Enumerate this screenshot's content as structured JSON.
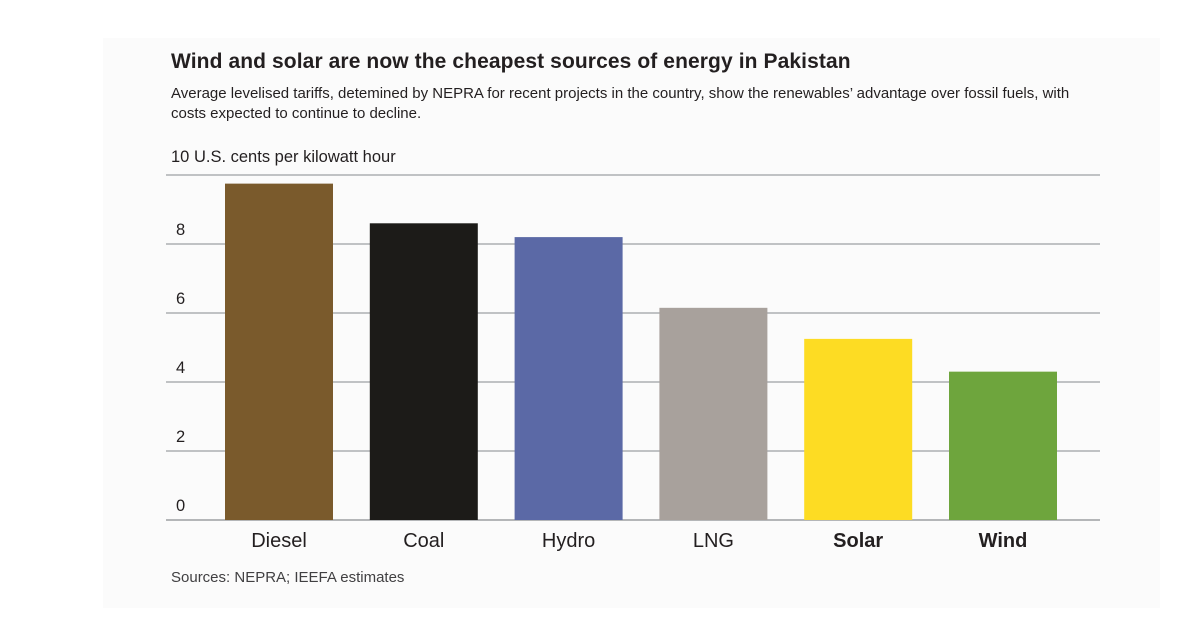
{
  "chart_data": {
    "type": "bar",
    "title": "Wind and solar are now the cheapest sources of energy in Pakistan",
    "subtitle": "Average levelised tariffs, detemined by NEPRA for recent projects in the country, show the renewables’ advantage over fossil fuels, with costs expected to continue to decline.",
    "ylabel": "U.S. cents per kilowatt hour",
    "source": "Sources: NEPRA; IEEFA estimates",
    "categories": [
      "Diesel",
      "Coal",
      "Hydro",
      "LNG",
      "Solar",
      "Wind"
    ],
    "bold_categories": [
      "Solar",
      "Wind"
    ],
    "values": [
      9.75,
      8.6,
      8.2,
      6.15,
      5.25,
      4.3
    ],
    "colors": [
      "#7a5a2c",
      "#1c1b18",
      "#5b69a6",
      "#a8a19c",
      "#fddc23",
      "#6ea53d"
    ],
    "ylim": [
      0,
      10
    ],
    "yticks": [
      "0",
      "2",
      "4",
      "6",
      "8",
      "10"
    ],
    "grid": true
  }
}
